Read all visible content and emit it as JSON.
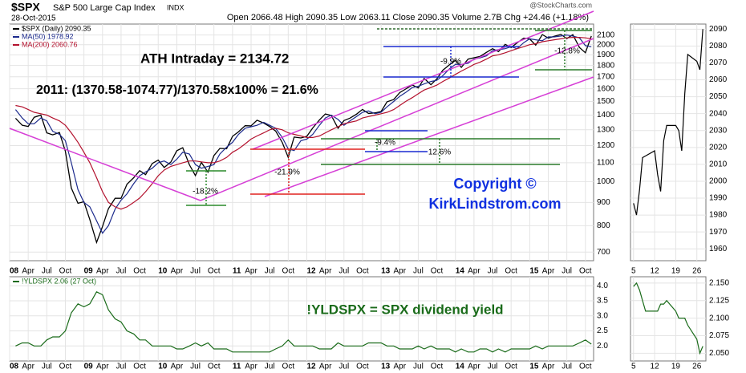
{
  "chart_data": [
    {
      "type": "line",
      "title": "$SPX",
      "subtitle": "S&P 500 Large Cap Index",
      "exchange": "INDX",
      "date": "28-Oct-2015",
      "quote": "Open 2066.48 High 2090.35 Low 2063.11 Close 2090.35 Volume 2.7B Chg +24.46 (+1.18%)",
      "source": "@StockCharts.com",
      "x": [
        2008.08,
        2008.17,
        2008.25,
        2008.33,
        2008.42,
        2008.5,
        2008.58,
        2008.67,
        2008.75,
        2008.83,
        2008.92,
        2009,
        2009.08,
        2009.17,
        2009.25,
        2009.33,
        2009.42,
        2009.5,
        2009.58,
        2009.67,
        2009.75,
        2009.83,
        2009.92,
        2010,
        2010.08,
        2010.17,
        2010.25,
        2010.33,
        2010.42,
        2010.5,
        2010.58,
        2010.67,
        2010.75,
        2010.83,
        2010.92,
        2011,
        2011.08,
        2011.17,
        2011.25,
        2011.33,
        2011.42,
        2011.5,
        2011.58,
        2011.67,
        2011.75,
        2011.83,
        2011.92,
        2012,
        2012.08,
        2012.17,
        2012.25,
        2012.33,
        2012.42,
        2012.5,
        2012.58,
        2012.67,
        2012.75,
        2012.83,
        2012.92,
        2013,
        2013.08,
        2013.17,
        2013.25,
        2013.33,
        2013.42,
        2013.5,
        2013.58,
        2013.67,
        2013.75,
        2013.83,
        2013.92,
        2014,
        2014.08,
        2014.17,
        2014.25,
        2014.33,
        2014.42,
        2014.5,
        2014.58,
        2014.67,
        2014.75,
        2014.83,
        2014.92,
        2015,
        2015.08,
        2015.17,
        2015.25,
        2015.33,
        2015.42,
        2015.5,
        2015.58,
        2015.67,
        2015.75,
        2015.83
      ],
      "series": [
        {
          "name": "$SPX (Daily) 2090.35",
          "color": "#000000",
          "values": [
            1378,
            1330,
            1322,
            1385,
            1400,
            1280,
            1267,
            1282,
            1166,
            968,
            896,
            903,
            825,
            735,
            797,
            872,
            919,
            919,
            987,
            1020,
            1057,
            1036,
            1096,
            1115,
            1074,
            1104,
            1169,
            1187,
            1089,
            1031,
            1102,
            1049,
            1141,
            1183,
            1181,
            1258,
            1286,
            1327,
            1326,
            1364,
            1345,
            1321,
            1292,
            1219,
            1131,
            1253,
            1247,
            1258,
            1312,
            1366,
            1408,
            1398,
            1310,
            1362,
            1379,
            1407,
            1441,
            1412,
            1416,
            1426,
            1498,
            1515,
            1569,
            1598,
            1631,
            1606,
            1686,
            1633,
            1682,
            1757,
            1806,
            1848,
            1783,
            1859,
            1872,
            1884,
            1924,
            1960,
            1931,
            2003,
            1972,
            2018,
            2068,
            2059,
            1995,
            2105,
            2068,
            2086,
            2107,
            2063,
            2104,
            1972,
            1920,
            2090
          ]
        },
        {
          "name": "MA(50) 1978.92",
          "color": "#1c2a8c",
          "values": [
            1440,
            1380,
            1340,
            1340,
            1380,
            1360,
            1290,
            1270,
            1230,
            1100,
            960,
            900,
            880,
            820,
            770,
            800,
            870,
            910,
            940,
            990,
            1030,
            1050,
            1070,
            1100,
            1110,
            1090,
            1120,
            1160,
            1150,
            1090,
            1070,
            1080,
            1090,
            1150,
            1190,
            1220,
            1270,
            1310,
            1320,
            1330,
            1350,
            1330,
            1310,
            1250,
            1180,
            1170,
            1230,
            1240,
            1270,
            1330,
            1380,
            1400,
            1370,
            1330,
            1360,
            1390,
            1420,
            1430,
            1410,
            1420,
            1460,
            1500,
            1540,
            1570,
            1610,
            1620,
            1640,
            1660,
            1670,
            1710,
            1770,
            1810,
            1810,
            1820,
            1860,
            1870,
            1890,
            1940,
            1950,
            1960,
            1980,
            1960,
            2020,
            2060,
            2050,
            2040,
            2080,
            2080,
            2090,
            2100,
            2090,
            2070,
            1990,
            1979
          ]
        },
        {
          "name": "MA(200) 2060.76",
          "color": "#b3122e",
          "values": [
            1470,
            1460,
            1440,
            1420,
            1410,
            1400,
            1380,
            1360,
            1330,
            1280,
            1220,
            1160,
            1100,
            1020,
            950,
            900,
            880,
            870,
            880,
            900,
            920,
            950,
            990,
            1030,
            1060,
            1080,
            1090,
            1100,
            1110,
            1110,
            1105,
            1100,
            1100,
            1110,
            1130,
            1160,
            1180,
            1210,
            1240,
            1260,
            1280,
            1300,
            1310,
            1300,
            1280,
            1270,
            1260,
            1250,
            1250,
            1260,
            1280,
            1300,
            1320,
            1340,
            1350,
            1360,
            1380,
            1390,
            1400,
            1410,
            1420,
            1440,
            1470,
            1500,
            1530,
            1560,
            1590,
            1610,
            1630,
            1660,
            1690,
            1720,
            1750,
            1780,
            1810,
            1830,
            1860,
            1890,
            1900,
            1920,
            1940,
            1960,
            1980,
            2000,
            2010,
            2030,
            2040,
            2050,
            2060,
            2070,
            2075,
            2075,
            2070,
            2061
          ]
        }
      ],
      "xlim": [
        2008,
        2015.86
      ],
      "xticks": [
        {
          "value": 2008,
          "label": "08"
        },
        {
          "value": 2008.25,
          "label": "Apr"
        },
        {
          "value": 2008.5,
          "label": "Jul"
        },
        {
          "value": 2008.75,
          "label": "Oct"
        },
        {
          "value": 2009,
          "label": "09"
        },
        {
          "value": 2009.25,
          "label": "Apr"
        },
        {
          "value": 2009.5,
          "label": "Jul"
        },
        {
          "value": 2009.75,
          "label": "Oct"
        },
        {
          "value": 2010,
          "label": "10"
        },
        {
          "value": 2010.25,
          "label": "Apr"
        },
        {
          "value": 2010.5,
          "label": "Jul"
        },
        {
          "value": 2010.75,
          "label": "Oct"
        },
        {
          "value": 2011,
          "label": "11"
        },
        {
          "value": 2011.25,
          "label": "Apr"
        },
        {
          "value": 2011.5,
          "label": "Jul"
        },
        {
          "value": 2011.75,
          "label": "Oct"
        },
        {
          "value": 2012,
          "label": "12"
        },
        {
          "value": 2012.25,
          "label": "Apr"
        },
        {
          "value": 2012.5,
          "label": "Jul"
        },
        {
          "value": 2012.75,
          "label": "Oct"
        },
        {
          "value": 2013,
          "label": "13"
        },
        {
          "value": 2013.25,
          "label": "Apr"
        },
        {
          "value": 2013.5,
          "label": "Jul"
        },
        {
          "value": 2013.75,
          "label": "Oct"
        },
        {
          "value": 2014,
          "label": "14"
        },
        {
          "value": 2014.25,
          "label": "Apr"
        },
        {
          "value": 2014.5,
          "label": "Jul"
        },
        {
          "value": 2014.75,
          "label": "Oct"
        },
        {
          "value": 2015,
          "label": "15"
        },
        {
          "value": 2015.25,
          "label": "Apr"
        },
        {
          "value": 2015.5,
          "label": "Jul"
        },
        {
          "value": 2015.75,
          "label": "Oct"
        }
      ],
      "ylim": [
        670,
        2220
      ],
      "yticks": [
        700,
        800,
        900,
        1000,
        1100,
        1200,
        1300,
        1400,
        1500,
        1600,
        1700,
        1800,
        1900,
        2000,
        2100
      ],
      "log_y": true,
      "grid": true,
      "annotations": [
        "ATH Intraday = 2134.72",
        "2011: (1370.58-1074.77)/1370.58x100% = 21.6%",
        "Copyright ©",
        "KirkLindstrom.com",
        "-18.2%",
        "-21.9%",
        "-9.4%",
        "12.6%",
        "-9.9%",
        "-12.8%"
      ]
    },
    {
      "type": "line",
      "x": [
        2008.08,
        2008.17,
        2008.25,
        2008.33,
        2008.42,
        2008.5,
        2008.58,
        2008.67,
        2008.75,
        2008.83,
        2008.92,
        2009,
        2009.08,
        2009.17,
        2009.25,
        2009.33,
        2009.42,
        2009.5,
        2009.58,
        2009.67,
        2009.75,
        2009.83,
        2009.92,
        2010,
        2010.08,
        2010.17,
        2010.25,
        2010.33,
        2010.42,
        2010.5,
        2010.58,
        2010.67,
        2010.75,
        2010.83,
        2010.92,
        2011,
        2011.08,
        2011.17,
        2011.25,
        2011.33,
        2011.42,
        2011.5,
        2011.58,
        2011.67,
        2011.75,
        2011.83,
        2011.92,
        2012,
        2012.08,
        2012.17,
        2012.25,
        2012.33,
        2012.42,
        2012.5,
        2012.58,
        2012.67,
        2012.75,
        2012.83,
        2012.92,
        2013,
        2013.08,
        2013.17,
        2013.25,
        2013.33,
        2013.42,
        2013.5,
        2013.58,
        2013.67,
        2013.75,
        2013.83,
        2013.92,
        2014,
        2014.08,
        2014.17,
        2014.25,
        2014.33,
        2014.42,
        2014.5,
        2014.58,
        2014.67,
        2014.75,
        2014.83,
        2014.92,
        2015,
        2015.08,
        2015.17,
        2015.25,
        2015.33,
        2015.42,
        2015.5,
        2015.58,
        2015.67,
        2015.75,
        2015.83
      ],
      "series": [
        {
          "name": "!YLDSPX 2.06 (27 Oct)",
          "color": "#1a6b1a",
          "values": [
            2.0,
            2.1,
            2.1,
            2.0,
            2.0,
            2.2,
            2.3,
            2.3,
            2.5,
            3.1,
            3.4,
            3.3,
            3.4,
            3.8,
            3.7,
            3.2,
            2.9,
            2.8,
            2.5,
            2.4,
            2.2,
            2.2,
            2.0,
            2.0,
            2.0,
            2.0,
            1.9,
            1.9,
            2.0,
            2.1,
            2.0,
            2.1,
            1.9,
            1.9,
            1.9,
            1.8,
            1.8,
            1.8,
            1.8,
            1.8,
            1.8,
            1.8,
            1.9,
            2.0,
            2.2,
            2.0,
            2.0,
            2.0,
            2.0,
            1.9,
            1.9,
            1.9,
            2.1,
            2.0,
            2.0,
            2.0,
            2.0,
            2.1,
            2.1,
            2.1,
            2.0,
            2.0,
            1.9,
            1.9,
            1.9,
            2.0,
            1.9,
            2.0,
            1.9,
            1.9,
            1.9,
            1.8,
            1.9,
            1.8,
            1.8,
            1.9,
            1.9,
            1.8,
            1.9,
            1.8,
            1.9,
            1.9,
            1.9,
            1.9,
            2.0,
            1.9,
            2.0,
            2.0,
            2.0,
            2.0,
            2.0,
            2.1,
            2.2,
            2.06
          ]
        }
      ],
      "xlim": [
        2008,
        2015.86
      ],
      "ylim": [
        1.5,
        4.3
      ],
      "yticks": [
        {
          "value": 2,
          "label": "2.0"
        },
        2.5,
        {
          "value": 3,
          "label": "3.0"
        },
        3.5,
        {
          "value": 4,
          "label": "4.0"
        }
      ],
      "grid": true,
      "annotations": [
        "!YLDSPX = SPX dividend yield"
      ]
    },
    {
      "type": "line",
      "x": [
        5,
        6,
        7,
        8,
        9,
        12,
        13,
        14,
        15,
        16,
        19,
        20,
        21,
        22,
        23,
        26,
        27,
        28
      ],
      "series": [
        {
          "color": "#000000",
          "values": [
            1987,
            1980,
            1995,
            2014,
            2015,
            2018,
            2004,
            1994,
            2024,
            2033,
            2033,
            2030,
            2018,
            2052,
            2075,
            2071,
            2066,
            2090
          ]
        }
      ],
      "xlim": [
        4,
        29
      ],
      "xticks": [
        5,
        12,
        19,
        26
      ],
      "ylim": [
        1953,
        2093
      ],
      "yticks": [
        1960,
        1970,
        1980,
        1990,
        2000,
        2010,
        2020,
        2030,
        2040,
        2050,
        2060,
        2070,
        2080,
        2090
      ],
      "grid": true
    },
    {
      "type": "line",
      "x": [
        5,
        6,
        7,
        8,
        9,
        12,
        13,
        14,
        15,
        16,
        19,
        20,
        21,
        22,
        23,
        26,
        27,
        28
      ],
      "series": [
        {
          "color": "#1a6b1a",
          "values": [
            2.145,
            2.15,
            2.14,
            2.125,
            2.11,
            2.11,
            2.11,
            2.12,
            2.12,
            2.125,
            2.11,
            2.1,
            2.1,
            2.1,
            2.09,
            2.07,
            2.05,
            2.06
          ]
        }
      ],
      "xlim": [
        4,
        29
      ],
      "ylim": [
        2.039,
        2.159
      ],
      "yticks": [
        {
          "value": 2.05,
          "label": "2.050"
        },
        {
          "value": 2.075,
          "label": "2.075"
        },
        {
          "value": 2.1,
          "label": "2.100"
        },
        {
          "value": 2.125,
          "label": "2.125"
        },
        {
          "value": 2.15,
          "label": "2.150"
        }
      ],
      "grid": true
    }
  ]
}
